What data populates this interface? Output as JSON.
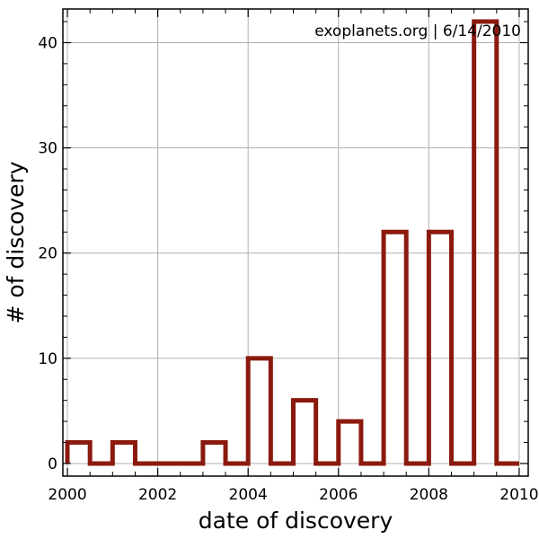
{
  "chart_data": {
    "type": "histogram",
    "xlabel": "date of discovery",
    "ylabel": "# of discovery",
    "annotation": "exoplanets.org | 6/14/2010",
    "xlim": [
      1999.9,
      2010.2
    ],
    "ylim": [
      -1.2,
      43.2
    ],
    "xticks": [
      2000,
      2002,
      2004,
      2006,
      2008,
      2010
    ],
    "yticks": [
      0,
      10,
      20,
      30,
      40
    ],
    "xtick_labels": [
      "2000",
      "2002",
      "2004",
      "2006",
      "2008",
      "2010"
    ],
    "ytick_labels": [
      "0",
      "10",
      "20",
      "30",
      "40"
    ],
    "grid": true,
    "bin_width": 0.5,
    "bins_start": [
      2000,
      2000.5,
      2001,
      2001.5,
      2002,
      2002.5,
      2003,
      2003.5,
      2004,
      2004.5,
      2005,
      2005.5,
      2006,
      2006.5,
      2007,
      2007.5,
      2008,
      2008.5,
      2009,
      2009.5
    ],
    "counts": [
      2,
      0,
      2,
      0,
      0,
      0,
      2,
      0,
      10,
      0,
      6,
      0,
      4,
      0,
      22,
      0,
      22,
      0,
      42,
      0
    ],
    "colors": {
      "histogram": "#8b1a0e",
      "grid": "#b0b0b0",
      "axes": "#000000"
    }
  }
}
